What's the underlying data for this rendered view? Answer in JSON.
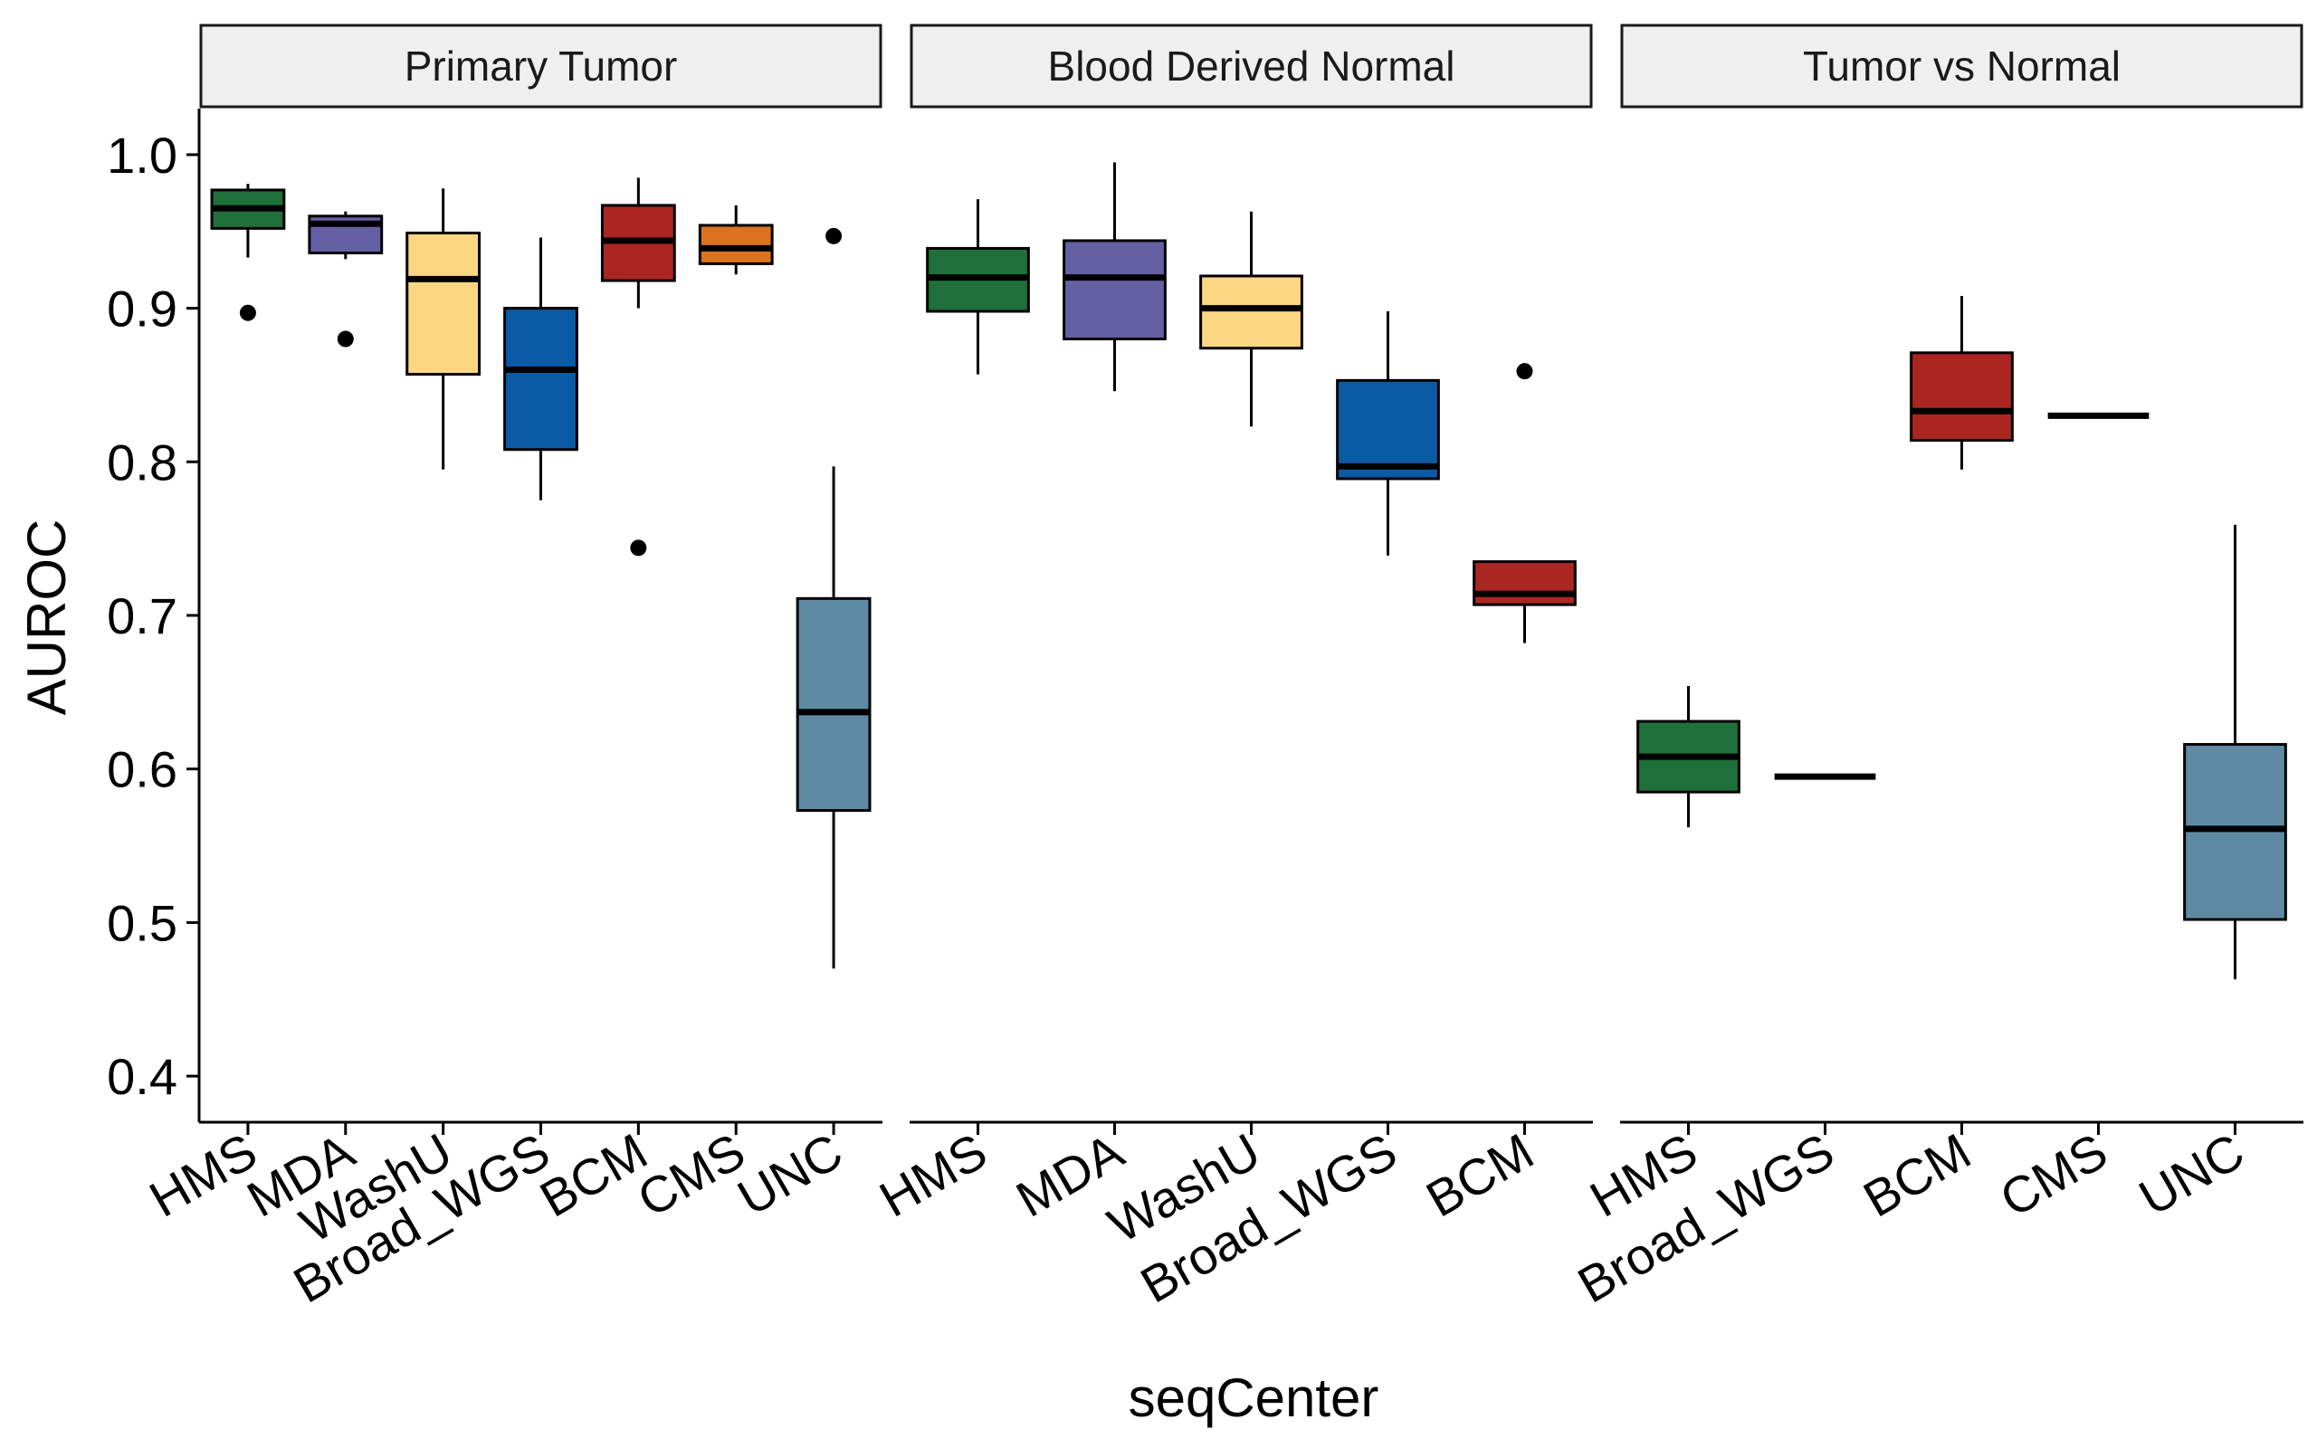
{
  "chart_data": {
    "type": "boxplot",
    "xlabel": "seqCenter",
    "ylabel": "AUROC",
    "ylim": [
      0.37,
      1.03
    ],
    "yticks": [
      "0.4",
      "0.5",
      "0.6",
      "0.7",
      "0.8",
      "0.9",
      "1.0"
    ],
    "grid": false,
    "legend": "none",
    "colors": {
      "HMS": "#1f6f3a",
      "MDA": "#6560a3",
      "WashU": "#fdd683",
      "Broad_WGS": "#0b5aa6",
      "BCM": "#ab2621",
      "CMS": "#d9731f",
      "UNC": "#5f8aa3"
    },
    "panels": [
      {
        "title": "Primary Tumor",
        "categories": [
          "HMS",
          "MDA",
          "WashU",
          "Broad_WGS",
          "BCM",
          "CMS",
          "UNC"
        ],
        "boxes": [
          {
            "category": "HMS",
            "whisker_low": 0.933,
            "q1": 0.952,
            "median": 0.965,
            "q3": 0.977,
            "whisker_high": 0.981,
            "outliers": [
              0.897
            ]
          },
          {
            "category": "MDA",
            "whisker_low": 0.932,
            "q1": 0.936,
            "median": 0.955,
            "q3": 0.96,
            "whisker_high": 0.963,
            "outliers": [
              0.88
            ]
          },
          {
            "category": "WashU",
            "whisker_low": 0.795,
            "q1": 0.857,
            "median": 0.919,
            "q3": 0.949,
            "whisker_high": 0.978,
            "outliers": []
          },
          {
            "category": "Broad_WGS",
            "whisker_low": 0.775,
            "q1": 0.808,
            "median": 0.86,
            "q3": 0.9,
            "whisker_high": 0.946,
            "outliers": []
          },
          {
            "category": "BCM",
            "whisker_low": 0.9,
            "q1": 0.918,
            "median": 0.944,
            "q3": 0.967,
            "whisker_high": 0.985,
            "outliers": [
              0.744
            ]
          },
          {
            "category": "CMS",
            "whisker_low": 0.922,
            "q1": 0.929,
            "median": 0.939,
            "q3": 0.954,
            "whisker_high": 0.967,
            "outliers": []
          },
          {
            "category": "UNC",
            "whisker_low": 0.47,
            "q1": 0.573,
            "median": 0.637,
            "q3": 0.711,
            "whisker_high": 0.797,
            "outliers": [
              0.947
            ]
          }
        ]
      },
      {
        "title": "Blood Derived Normal",
        "categories": [
          "HMS",
          "MDA",
          "WashU",
          "Broad_WGS",
          "BCM"
        ],
        "boxes": [
          {
            "category": "HMS",
            "whisker_low": 0.857,
            "q1": 0.898,
            "median": 0.92,
            "q3": 0.939,
            "whisker_high": 0.971,
            "outliers": []
          },
          {
            "category": "MDA",
            "whisker_low": 0.846,
            "q1": 0.88,
            "median": 0.92,
            "q3": 0.944,
            "whisker_high": 0.995,
            "outliers": []
          },
          {
            "category": "WashU",
            "whisker_low": 0.823,
            "q1": 0.874,
            "median": 0.9,
            "q3": 0.921,
            "whisker_high": 0.963,
            "outliers": []
          },
          {
            "category": "Broad_WGS",
            "whisker_low": 0.739,
            "q1": 0.789,
            "median": 0.797,
            "q3": 0.853,
            "whisker_high": 0.898,
            "outliers": []
          },
          {
            "category": "BCM",
            "whisker_low": 0.682,
            "q1": 0.707,
            "median": 0.714,
            "q3": 0.735,
            "whisker_high": 0.735,
            "outliers": [
              0.859
            ]
          }
        ]
      },
      {
        "title": "Tumor vs Normal",
        "categories": [
          "HMS",
          "Broad_WGS",
          "BCM",
          "CMS",
          "UNC"
        ],
        "boxes": [
          {
            "category": "HMS",
            "whisker_low": 0.562,
            "q1": 0.585,
            "median": 0.608,
            "q3": 0.631,
            "whisker_high": 0.654,
            "outliers": []
          },
          {
            "category": "Broad_WGS",
            "whisker_low": 0.595,
            "q1": 0.595,
            "median": 0.595,
            "q3": 0.595,
            "whisker_high": 0.595,
            "outliers": []
          },
          {
            "category": "BCM",
            "whisker_low": 0.795,
            "q1": 0.814,
            "median": 0.833,
            "q3": 0.871,
            "whisker_high": 0.908,
            "outliers": []
          },
          {
            "category": "CMS",
            "whisker_low": 0.83,
            "q1": 0.83,
            "median": 0.83,
            "q3": 0.83,
            "whisker_high": 0.83,
            "outliers": []
          },
          {
            "category": "UNC",
            "whisker_low": 0.463,
            "q1": 0.502,
            "median": 0.561,
            "q3": 0.616,
            "whisker_high": 0.759,
            "outliers": []
          }
        ]
      }
    ]
  }
}
